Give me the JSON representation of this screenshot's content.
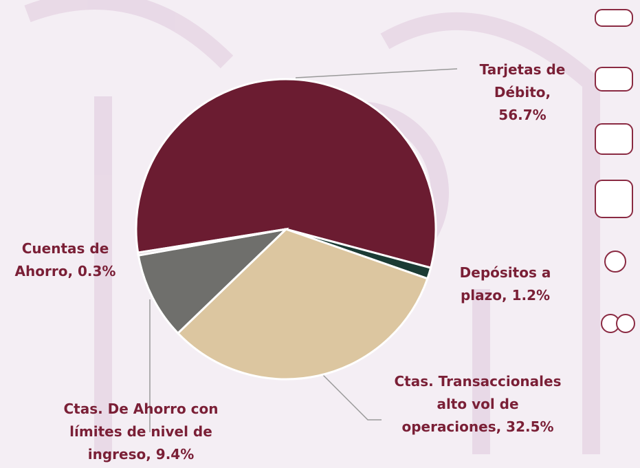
{
  "chart_data": {
    "type": "pie",
    "values": [
      56.7,
      1.2,
      32.5,
      9.4,
      0.3
    ],
    "value_labels": [
      "Tarjetas de Débito, 56.7%",
      "Depósitos a plazo, 1.2%",
      "Ctas. Transaccionales alto vol de operaciones, 32.5%",
      "Ctas. De Ahorro con límites de nivel de ingreso, 9.4%",
      "Cuentas de Ahorro, 0.3%"
    ],
    "colors": [
      "#6b1c31",
      "#1b3b34",
      "#dcc6a0",
      "#6f6f6c",
      "#d9d0d6"
    ]
  }
}
